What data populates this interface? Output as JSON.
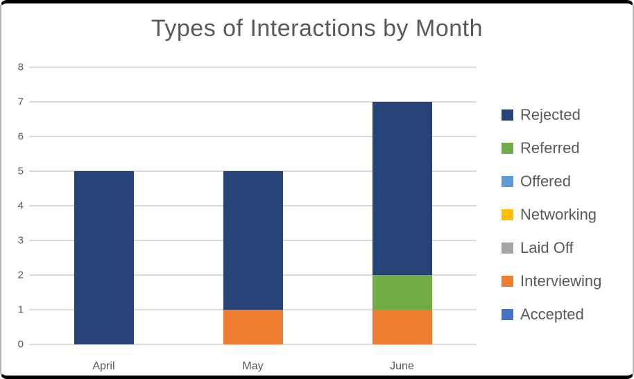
{
  "chart_data": {
    "type": "bar",
    "stacked": true,
    "title": "Types of Interactions by Month",
    "categories": [
      "April",
      "May",
      "June"
    ],
    "series": [
      {
        "name": "Rejected",
        "color": "#264478",
        "values": [
          5,
          4,
          5
        ]
      },
      {
        "name": "Referred",
        "color": "#70AD47",
        "values": [
          0,
          0,
          1
        ]
      },
      {
        "name": "Offered",
        "color": "#5B9BD5",
        "values": [
          0,
          0,
          0
        ]
      },
      {
        "name": "Networking",
        "color": "#FFC000",
        "values": [
          0,
          0,
          0
        ]
      },
      {
        "name": "Laid Off",
        "color": "#A5A5A5",
        "values": [
          0,
          0,
          0
        ]
      },
      {
        "name": "Interviewing",
        "color": "#ED7D31",
        "values": [
          0,
          1,
          1
        ]
      },
      {
        "name": "Accepted",
        "color": "#4472C4",
        "values": [
          0,
          0,
          0
        ]
      }
    ],
    "totals": [
      5,
      5,
      7
    ],
    "ylim": [
      0,
      8
    ],
    "ytick_step": 1,
    "grid": true,
    "legend_position": "right",
    "text_color": "#595959",
    "gridline_color": "#D9D9D9"
  }
}
